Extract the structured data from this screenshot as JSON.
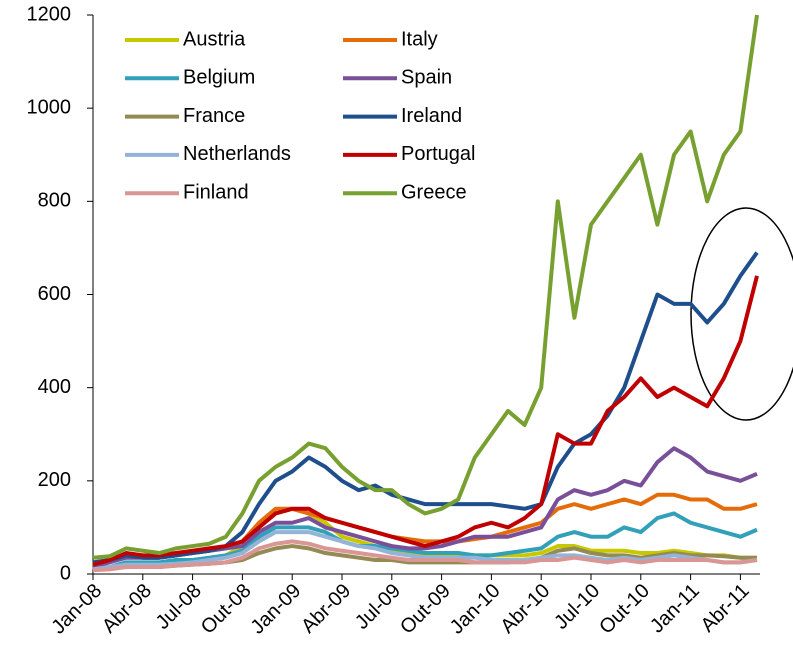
{
  "chart_data": {
    "type": "line",
    "categories": [
      "Jan-08",
      null,
      null,
      "Abr-08",
      null,
      null,
      "Jul-08",
      null,
      null,
      "Out-08",
      null,
      null,
      "Jan-09",
      null,
      null,
      "Abr-09",
      null,
      null,
      "Jul-09",
      null,
      null,
      "Out-09",
      null,
      null,
      "Jan-10",
      null,
      null,
      "Abr-10",
      null,
      null,
      "Jul-10",
      null,
      null,
      "Out-10",
      null,
      null,
      "Jan-11",
      null,
      null,
      "Abr-11",
      null
    ],
    "series": [
      {
        "name": "Austria",
        "color": "#c8c800",
        "values": [
          10,
          15,
          20,
          20,
          20,
          25,
          25,
          30,
          40,
          60,
          100,
          130,
          140,
          130,
          110,
          80,
          70,
          60,
          50,
          45,
          40,
          40,
          40,
          40,
          40,
          40,
          40,
          45,
          60,
          60,
          50,
          50,
          50,
          45,
          45,
          50,
          45,
          40,
          40,
          35,
          35
        ]
      },
      {
        "name": "Italy",
        "color": "#e46c0a",
        "values": [
          20,
          30,
          40,
          35,
          35,
          40,
          45,
          50,
          55,
          70,
          110,
          140,
          140,
          130,
          120,
          110,
          100,
          90,
          80,
          75,
          70,
          70,
          70,
          75,
          80,
          90,
          100,
          110,
          140,
          150,
          140,
          150,
          160,
          150,
          170,
          170,
          160,
          160,
          140,
          140,
          150
        ]
      },
      {
        "name": "Belgium",
        "color": "#31a0b8",
        "values": [
          10,
          15,
          25,
          25,
          25,
          30,
          30,
          35,
          40,
          50,
          80,
          100,
          100,
          100,
          90,
          70,
          60,
          60,
          55,
          50,
          45,
          45,
          45,
          40,
          40,
          45,
          50,
          55,
          80,
          90,
          80,
          80,
          100,
          90,
          120,
          130,
          110,
          100,
          90,
          80,
          95
        ]
      },
      {
        "name": "Spain",
        "color": "#7a4f9a",
        "values": [
          15,
          25,
          35,
          35,
          35,
          40,
          45,
          50,
          55,
          60,
          90,
          110,
          110,
          120,
          100,
          90,
          80,
          70,
          60,
          55,
          55,
          60,
          70,
          80,
          80,
          80,
          90,
          100,
          160,
          180,
          170,
          180,
          200,
          190,
          240,
          270,
          250,
          220,
          210,
          200,
          215
        ]
      },
      {
        "name": "France",
        "color": "#948a54",
        "values": [
          10,
          12,
          15,
          15,
          15,
          18,
          20,
          22,
          25,
          30,
          45,
          55,
          60,
          55,
          45,
          40,
          35,
          30,
          30,
          25,
          25,
          25,
          25,
          25,
          25,
          25,
          30,
          35,
          50,
          55,
          45,
          40,
          40,
          35,
          40,
          45,
          40,
          40,
          38,
          35,
          35
        ]
      },
      {
        "name": "Ireland",
        "color": "#1f4e8c",
        "values": [
          25,
          30,
          40,
          35,
          35,
          40,
          45,
          50,
          60,
          90,
          150,
          200,
          220,
          250,
          230,
          200,
          180,
          190,
          170,
          160,
          150,
          150,
          150,
          150,
          150,
          145,
          140,
          150,
          230,
          280,
          300,
          340,
          400,
          500,
          600,
          580,
          580,
          540,
          580,
          640,
          690
        ]
      },
      {
        "name": "Netherlands",
        "color": "#95b3d7",
        "values": [
          10,
          15,
          20,
          20,
          20,
          22,
          25,
          30,
          35,
          45,
          70,
          90,
          90,
          90,
          80,
          70,
          60,
          55,
          45,
          40,
          35,
          35,
          35,
          35,
          30,
          30,
          30,
          35,
          40,
          40,
          35,
          30,
          35,
          30,
          35,
          40,
          35,
          30,
          25,
          25,
          30
        ]
      },
      {
        "name": "Portugal",
        "color": "#c00000",
        "values": [
          20,
          30,
          45,
          40,
          40,
          45,
          50,
          55,
          60,
          70,
          100,
          130,
          140,
          140,
          120,
          110,
          100,
          90,
          80,
          70,
          60,
          70,
          80,
          100,
          110,
          100,
          120,
          150,
          300,
          280,
          280,
          350,
          380,
          420,
          380,
          400,
          380,
          360,
          420,
          500,
          640
        ]
      },
      {
        "name": "Finland",
        "color": "#d99694",
        "values": [
          8,
          10,
          15,
          15,
          15,
          18,
          20,
          22,
          25,
          35,
          55,
          65,
          70,
          65,
          55,
          50,
          45,
          40,
          35,
          30,
          30,
          30,
          30,
          25,
          25,
          25,
          25,
          30,
          30,
          35,
          30,
          25,
          30,
          25,
          30,
          30,
          30,
          30,
          25,
          25,
          30
        ]
      },
      {
        "name": "Greece",
        "color": "#77a030",
        "values": [
          35,
          38,
          55,
          50,
          45,
          55,
          60,
          65,
          80,
          130,
          200,
          230,
          250,
          280,
          270,
          230,
          200,
          180,
          180,
          150,
          130,
          140,
          160,
          250,
          300,
          350,
          320,
          400,
          800,
          550,
          750,
          800,
          850,
          900,
          750,
          900,
          950,
          800,
          900,
          950,
          1200
        ]
      }
    ],
    "ylim": [
      0,
      1200
    ],
    "yticks": [
      0,
      200,
      400,
      600,
      800,
      1000,
      1200
    ],
    "grid": false
  }
}
